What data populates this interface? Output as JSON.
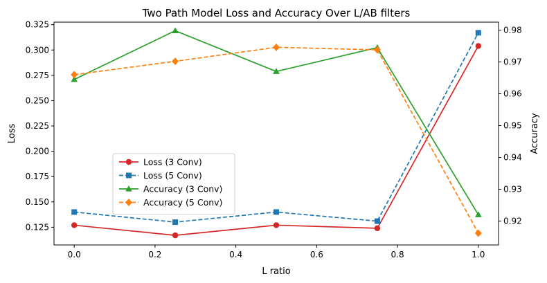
{
  "chart_data": {
    "type": "line",
    "title": "Two Path Model Loss and Accuracy Over L/AB filters",
    "xlabel": "L ratio",
    "ylabel_left": "Loss",
    "ylabel_right": "Accuracy",
    "x": [
      0.0,
      0.25,
      0.5,
      0.75,
      1.0
    ],
    "xlim": [
      -0.05,
      1.05
    ],
    "ylim_left": [
      0.1075,
      0.3275
    ],
    "ylim_right": [
      0.9125,
      0.9825
    ],
    "xticks": [
      "0.0",
      "0.2",
      "0.4",
      "0.6",
      "0.8",
      "1.0"
    ],
    "yticks_left": [
      "0.125",
      "0.150",
      "0.175",
      "0.200",
      "0.225",
      "0.250",
      "0.275",
      "0.300",
      "0.325"
    ],
    "yticks_right": [
      "0.92",
      "0.93",
      "0.94",
      "0.95",
      "0.96",
      "0.97",
      "0.98"
    ],
    "grid": false,
    "legend_position": "center-left",
    "series": [
      {
        "name": "Loss (3 Conv)",
        "axis": "left",
        "color": "#d62728",
        "marker": "circle",
        "dash": "solid",
        "values": [
          0.127,
          0.117,
          0.127,
          0.124,
          0.304
        ]
      },
      {
        "name": "Loss (5 Conv)",
        "axis": "left",
        "color": "#1f77b4",
        "marker": "square",
        "dash": "dashed",
        "values": [
          0.14,
          0.13,
          0.14,
          0.131,
          0.317
        ]
      },
      {
        "name": "Accuracy (3 Conv)",
        "axis": "right",
        "color": "#2ca02c",
        "marker": "triangle",
        "dash": "solid",
        "values": [
          0.9645,
          0.9798,
          0.967,
          0.9745,
          0.922
        ]
      },
      {
        "name": "Accuracy (5 Conv)",
        "axis": "right",
        "color": "#ff7f0e",
        "marker": "diamond",
        "dash": "dashed",
        "values": [
          0.966,
          0.9702,
          0.9746,
          0.9738,
          0.9162
        ]
      }
    ]
  }
}
